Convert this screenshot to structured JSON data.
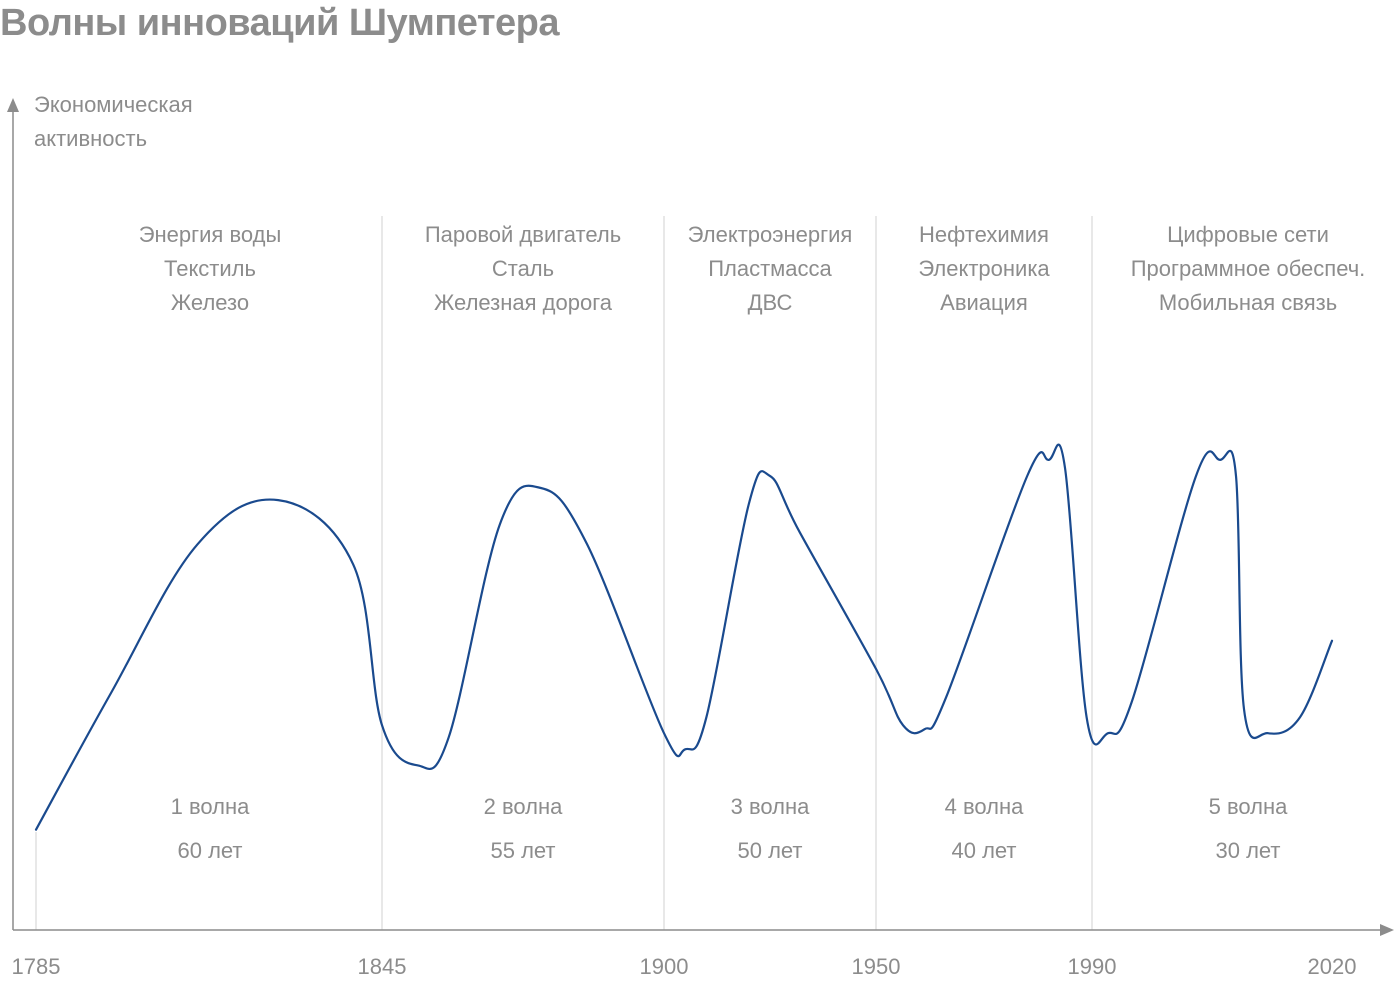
{
  "title": "Волны инноваций Шумпетера",
  "chart_data": {
    "type": "line",
    "title": "Волны инноваций Шумпетера",
    "ylabel": [
      "Экономическая",
      "активность"
    ],
    "xlabel": "",
    "x_ticks": [
      "1785",
      "1845",
      "1900",
      "1950",
      "1990",
      "2020"
    ],
    "x_tick_years": [
      1785,
      1845,
      1900,
      1950,
      1990,
      2020
    ],
    "xlim": [
      1785,
      2020
    ],
    "ylim": [
      0,
      100
    ],
    "grid": false,
    "line_color": "#1a4a8e",
    "boundary_color": "#d9d9d9",
    "axis_color": "#8c8c8c",
    "series": [
      {
        "values": [
          {
            "x": 1785,
            "y": 14
          },
          {
            "x": 1798,
            "y": 48
          },
          {
            "x": 1813,
            "y": 85
          },
          {
            "x": 1827,
            "y": 96
          },
          {
            "x": 1840,
            "y": 80
          },
          {
            "x": 1845,
            "y": 40
          },
          {
            "x": 1852,
            "y": 30
          },
          {
            "x": 1858,
            "y": 37
          },
          {
            "x": 1868,
            "y": 90
          },
          {
            "x": 1876,
            "y": 99
          },
          {
            "x": 1885,
            "y": 85
          },
          {
            "x": 1900,
            "y": 38
          },
          {
            "x": 1905,
            "y": 34
          },
          {
            "x": 1910,
            "y": 42
          },
          {
            "x": 1920,
            "y": 95
          },
          {
            "x": 1925,
            "y": 102
          },
          {
            "x": 1932,
            "y": 88
          },
          {
            "x": 1950,
            "y": 54
          },
          {
            "x": 1955,
            "y": 40
          },
          {
            "x": 1959,
            "y": 39
          },
          {
            "x": 1963,
            "y": 47
          },
          {
            "x": 1978,
            "y": 102
          },
          {
            "x": 1982,
            "y": 106
          },
          {
            "x": 1985,
            "y": 104
          },
          {
            "x": 1989,
            "y": 42
          },
          {
            "x": 1992,
            "y": 38
          },
          {
            "x": 1995,
            "y": 46
          },
          {
            "x": 2003,
            "y": 102
          },
          {
            "x": 2006,
            "y": 106
          },
          {
            "x": 2008,
            "y": 102
          },
          {
            "x": 2009,
            "y": 44
          },
          {
            "x": 2012,
            "y": 38
          },
          {
            "x": 2016,
            "y": 42
          },
          {
            "x": 2020,
            "y": 61
          }
        ]
      }
    ],
    "waves": [
      {
        "name": "1 волна",
        "duration": "60 лет",
        "start": 1785,
        "end": 1845,
        "innovations": [
          "Энергия воды",
          "Текстиль",
          "Железо"
        ]
      },
      {
        "name": "2 волна",
        "duration": "55 лет",
        "start": 1845,
        "end": 1900,
        "innovations": [
          "Паровой двигатель",
          "Сталь",
          "Железная дорога"
        ]
      },
      {
        "name": "3 волна",
        "duration": "50 лет",
        "start": 1900,
        "end": 1950,
        "innovations": [
          "Электроэнергия",
          "Пластмасса",
          "ДВС"
        ]
      },
      {
        "name": "4 волна",
        "duration": "40 лет",
        "start": 1950,
        "end": 1990,
        "innovations": [
          "Нефтехимия",
          "Электроника",
          "Авиация"
        ]
      },
      {
        "name": "5 волна",
        "duration": "30 лет",
        "start": 1990,
        "end": 2020,
        "innovations": [
          "Цифровые сети",
          "Программное обеспеч.",
          "Мобильная связь"
        ]
      }
    ]
  }
}
